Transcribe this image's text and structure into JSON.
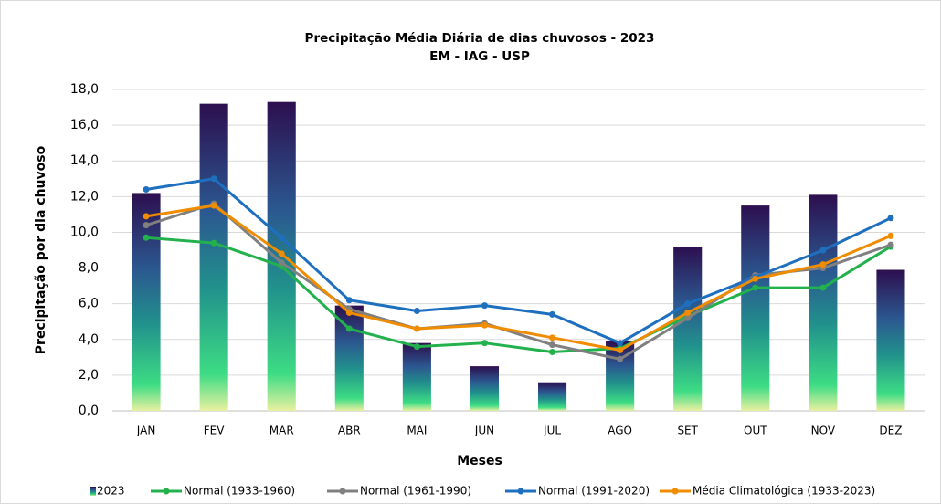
{
  "chart_data": {
    "type": "bar",
    "title": "Precipitação Média Diária de dias chuvosos - 2023",
    "subtitle": "EM - IAG - USP",
    "x_label": "Meses",
    "y_label": "Precipitação por dia chuvoso",
    "categories": [
      "JAN",
      "FEV",
      "MAR",
      "ABR",
      "MAI",
      "JUN",
      "JUL",
      "AGO",
      "SET",
      "OUT",
      "NOV",
      "DEZ"
    ],
    "series": [
      {
        "name": "2023",
        "type": "bar",
        "color": "#2a5d8f",
        "values": [
          12.2,
          17.2,
          17.3,
          5.9,
          3.8,
          2.5,
          1.6,
          3.9,
          9.2,
          11.5,
          12.1,
          7.9
        ]
      },
      {
        "name": "Normal (1933-1960)",
        "type": "line",
        "color": "#22b14c",
        "values": [
          9.7,
          9.4,
          8.1,
          4.6,
          3.6,
          3.8,
          3.3,
          3.5,
          5.3,
          6.9,
          6.9,
          9.2
        ]
      },
      {
        "name": "Normal (1961-1990)",
        "type": "line",
        "color": "#808080",
        "values": [
          10.4,
          11.6,
          8.3,
          5.7,
          4.6,
          4.9,
          3.7,
          2.9,
          5.2,
          7.6,
          8.0,
          9.3
        ]
      },
      {
        "name": "Normal (1991-2020)",
        "type": "line",
        "color": "#1f6fbf",
        "values": [
          12.4,
          13.0,
          9.7,
          6.2,
          5.6,
          5.9,
          5.4,
          3.8,
          6.0,
          7.5,
          9.0,
          10.8
        ]
      },
      {
        "name": "Média Climatológica (1933-2023)",
        "type": "line",
        "color": "#f08c00",
        "values": [
          10.9,
          11.5,
          8.8,
          5.5,
          4.6,
          4.8,
          4.1,
          3.4,
          5.5,
          7.4,
          8.2,
          9.8
        ]
      }
    ],
    "ylim": [
      0,
      18
    ],
    "yticks": [
      {
        "value": 0,
        "label": "0,0"
      },
      {
        "value": 2,
        "label": "2,0"
      },
      {
        "value": 4,
        "label": "4,0"
      },
      {
        "value": 6,
        "label": "6,0"
      },
      {
        "value": 8,
        "label": "8,0"
      },
      {
        "value": 10,
        "label": "10,0"
      },
      {
        "value": 12,
        "label": "12,0"
      },
      {
        "value": 14,
        "label": "14,0"
      },
      {
        "value": 16,
        "label": "16,0"
      },
      {
        "value": 18,
        "label": "18,0"
      }
    ],
    "grid": true
  }
}
